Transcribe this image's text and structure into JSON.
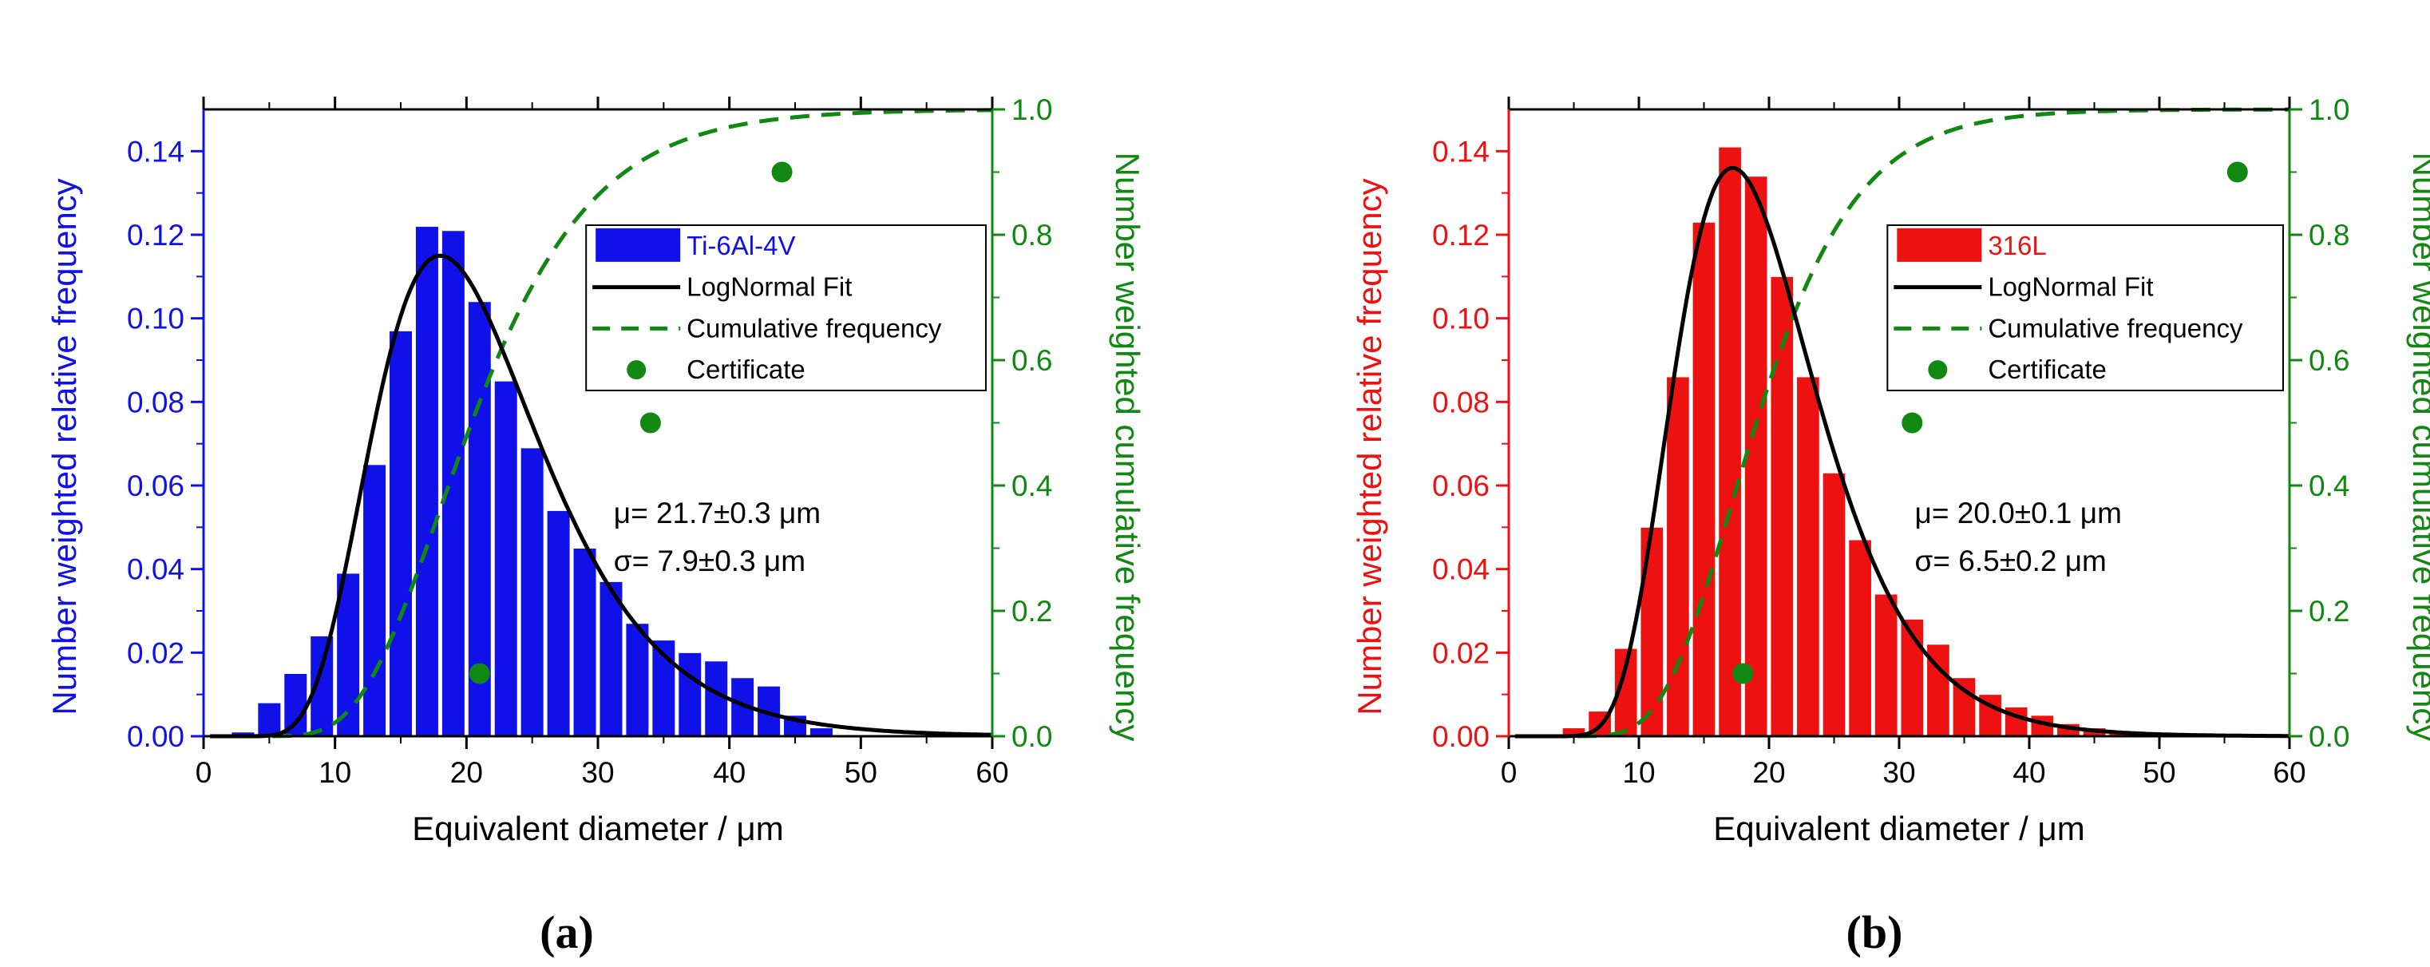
{
  "panels": [
    {
      "label": "(a)",
      "material": "Ti-6Al-4V",
      "color": "#1010e8",
      "stats": {
        "mu": "μ= 21.7±0.3 μm",
        "sigma": "σ= 7.9±0.3 μm"
      }
    },
    {
      "label": "(b)",
      "material": "316L",
      "color": "#ee1111",
      "stats": {
        "mu": "μ= 20.0±0.1 μm",
        "sigma": "σ= 6.5±0.2 μm"
      }
    }
  ],
  "fit_color": "#000000",
  "cumulative_color": "#118811",
  "chart_data": [
    {
      "type": "bar",
      "title": "",
      "xlabel": "Equivalent diameter / μm",
      "ylabel": "Number weighted relative frequency",
      "y2label": "Number weighted cumulative frequency",
      "xlim": [
        0,
        60
      ],
      "ylim": [
        0,
        0.15
      ],
      "y2lim": [
        0,
        1.0
      ],
      "xticks": [
        "0",
        "10",
        "20",
        "30",
        "40",
        "50",
        "60"
      ],
      "yticks": [
        "0.00",
        "0.02",
        "0.04",
        "0.06",
        "0.08",
        "0.10",
        "0.12",
        "0.14"
      ],
      "y2ticks": [
        "0.0",
        "0.2",
        "0.4",
        "0.6",
        "0.8",
        "1.0"
      ],
      "grid": false,
      "legend_position": "top-right",
      "bin_width": 2,
      "bars": {
        "name": "Ti-6Al-4V",
        "x": [
          3,
          5,
          7,
          9,
          11,
          13,
          15,
          17,
          19,
          21,
          23,
          25,
          27,
          29,
          31,
          33,
          35,
          37,
          39,
          41,
          43,
          45,
          47
        ],
        "y": [
          0.001,
          0.008,
          0.015,
          0.024,
          0.039,
          0.065,
          0.097,
          0.122,
          0.121,
          0.104,
          0.085,
          0.069,
          0.054,
          0.045,
          0.037,
          0.027,
          0.023,
          0.02,
          0.018,
          0.014,
          0.012,
          0.005,
          0.002
        ]
      },
      "fit": {
        "name": "LogNormal Fit",
        "mean": 21.7,
        "sd": 7.9,
        "peak_x": 18.2,
        "peak_y": 0.115
      },
      "cumulative": {
        "name": "Cumulative frequency",
        "mean": 21.7,
        "sd": 7.9
      },
      "certificate": {
        "name": "Certificate",
        "x": [
          21,
          34,
          44
        ],
        "y": [
          0.1,
          0.5,
          0.9
        ]
      }
    },
    {
      "type": "bar",
      "title": "",
      "xlabel": "Equivalent diameter / μm",
      "ylabel": "Number weighted relative frequency",
      "y2label": "Number weighted cumulative frequency",
      "xlim": [
        0,
        60
      ],
      "ylim": [
        0,
        0.15
      ],
      "y2lim": [
        0,
        1.0
      ],
      "xticks": [
        "0",
        "10",
        "20",
        "30",
        "40",
        "50",
        "60"
      ],
      "yticks": [
        "0.00",
        "0.02",
        "0.04",
        "0.06",
        "0.08",
        "0.10",
        "0.12",
        "0.14"
      ],
      "y2ticks": [
        "0.0",
        "0.2",
        "0.4",
        "0.6",
        "0.8",
        "1.0"
      ],
      "grid": false,
      "legend_position": "top-right",
      "bin_width": 2,
      "bars": {
        "name": "316L",
        "x": [
          5,
          7,
          9,
          11,
          13,
          15,
          17,
          19,
          21,
          23,
          25,
          27,
          29,
          31,
          33,
          35,
          37,
          39,
          41,
          43,
          45,
          47,
          49,
          51
        ],
        "y": [
          0.002,
          0.006,
          0.021,
          0.05,
          0.086,
          0.123,
          0.141,
          0.134,
          0.11,
          0.086,
          0.063,
          0.047,
          0.034,
          0.028,
          0.022,
          0.014,
          0.01,
          0.007,
          0.005,
          0.003,
          0.002,
          0.001,
          0.0005,
          0.0003
        ]
      },
      "fit": {
        "name": "LogNormal Fit",
        "mean": 20.0,
        "sd": 6.5,
        "peak_x": 17.2,
        "peak_y": 0.136
      },
      "cumulative": {
        "name": "Cumulative frequency",
        "mean": 20.0,
        "sd": 6.5
      },
      "certificate": {
        "name": "Certificate",
        "x": [
          18,
          31,
          56
        ],
        "y": [
          0.1,
          0.5,
          0.9
        ]
      }
    }
  ]
}
